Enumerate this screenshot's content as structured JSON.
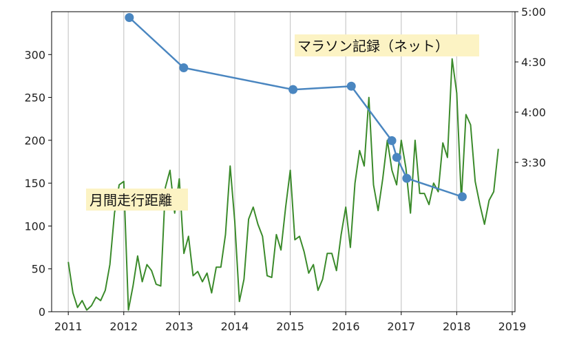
{
  "chart_data": {
    "type": "line",
    "x_ticks": [
      "2011",
      "2012",
      "2013",
      "2014",
      "2015",
      "2016",
      "2017",
      "2018",
      "2019"
    ],
    "xlim": [
      2010.7,
      2019.05
    ],
    "grid": "vertical",
    "left_axis": {
      "ylim": [
        0,
        350
      ],
      "ticks": [
        0,
        50,
        100,
        150,
        200,
        250,
        300
      ],
      "tick_labels": [
        "0",
        "50",
        "100",
        "150",
        "200",
        "250",
        "300"
      ]
    },
    "right_axis": {
      "ticks": [
        210,
        240,
        270,
        300
      ],
      "tick_labels": [
        "3:30",
        "4:00",
        "4:30",
        "5:00"
      ],
      "unit": "minutes"
    },
    "series": [
      {
        "name": "月間走行距離",
        "axis": "left",
        "color": "#3a8a2a",
        "marker": "none",
        "x": [
          2011.0,
          2011.083,
          2011.167,
          2011.25,
          2011.333,
          2011.417,
          2011.5,
          2011.583,
          2011.667,
          2011.75,
          2011.833,
          2011.917,
          2012.0,
          2012.083,
          2012.167,
          2012.25,
          2012.333,
          2012.417,
          2012.5,
          2012.583,
          2012.667,
          2012.75,
          2012.833,
          2012.917,
          2013.0,
          2013.083,
          2013.167,
          2013.25,
          2013.333,
          2013.417,
          2013.5,
          2013.583,
          2013.667,
          2013.75,
          2013.833,
          2013.917,
          2014.0,
          2014.083,
          2014.167,
          2014.25,
          2014.333,
          2014.417,
          2014.5,
          2014.583,
          2014.667,
          2014.75,
          2014.833,
          2014.917,
          2015.0,
          2015.083,
          2015.167,
          2015.25,
          2015.333,
          2015.417,
          2015.5,
          2015.583,
          2015.667,
          2015.75,
          2015.833,
          2015.917,
          2016.0,
          2016.083,
          2016.167,
          2016.25,
          2016.333,
          2016.417,
          2016.5,
          2016.583,
          2016.667,
          2016.75,
          2016.833,
          2016.917,
          2017.0,
          2017.083,
          2017.167,
          2017.25,
          2017.333,
          2017.417,
          2017.5,
          2017.583,
          2017.667,
          2017.75,
          2017.833,
          2017.917,
          2018.0,
          2018.083,
          2018.167,
          2018.25,
          2018.333,
          2018.417,
          2018.5,
          2018.583,
          2018.667,
          2018.75
        ],
        "values": [
          58,
          22,
          5,
          13,
          2,
          7,
          17,
          13,
          25,
          55,
          115,
          148,
          152,
          2,
          30,
          65,
          35,
          55,
          48,
          32,
          30,
          145,
          165,
          115,
          155,
          68,
          88,
          42,
          47,
          35,
          45,
          22,
          52,
          52,
          90,
          170,
          105,
          12,
          38,
          108,
          122,
          102,
          88,
          42,
          40,
          90,
          72,
          122,
          165,
          84,
          88,
          70,
          45,
          55,
          25,
          38,
          68,
          68,
          48,
          90,
          122,
          75,
          150,
          188,
          170,
          250,
          148,
          118,
          155,
          200,
          165,
          148,
          200,
          168,
          115,
          200,
          138,
          138,
          125,
          150,
          140,
          197,
          180,
          295,
          255,
          130,
          230,
          218,
          152,
          125,
          102,
          130,
          140,
          190
        ]
      },
      {
        "name": "マラソン記録（ネット）",
        "axis": "right",
        "color": "#4a86c0",
        "marker": "circle",
        "x": [
          2012.1,
          2013.08,
          2015.05,
          2016.1,
          2016.83,
          2016.92,
          2017.1,
          2018.1
        ],
        "values": [
          296.5,
          266.5,
          253.5,
          255.5,
          223.0,
          213.0,
          200.5,
          189.5
        ]
      }
    ]
  },
  "labels": {
    "distance_label": "月間走行距離",
    "marathon_label": "マラソン記録（ネット）"
  },
  "colors": {
    "label_background": "#fcf3c4",
    "grid": "#c8c8c8",
    "axis": "#000000"
  }
}
